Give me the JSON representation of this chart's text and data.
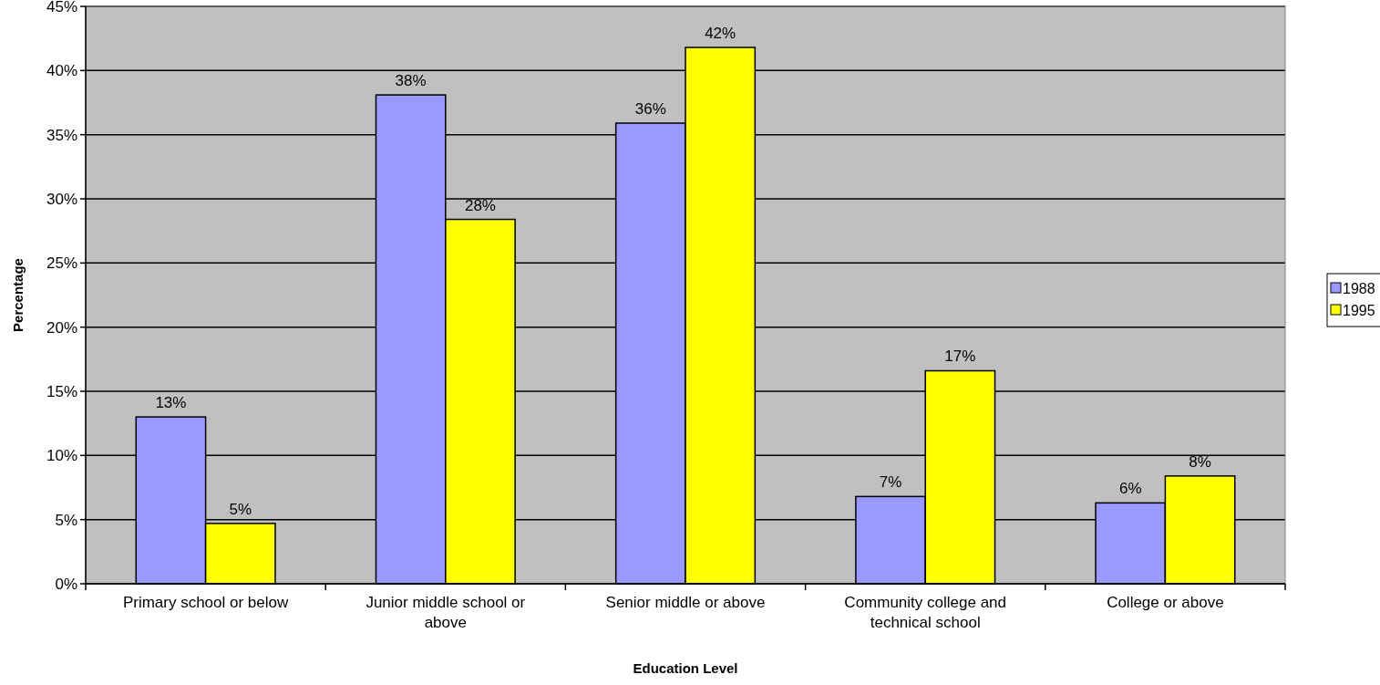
{
  "chart_data": {
    "type": "bar",
    "xlabel": "Education Level",
    "ylabel": "Percentage",
    "categories": [
      "Primary school or below",
      "Junior middle school or above",
      "Senior middle or above",
      "Community college and technical school",
      "College or above"
    ],
    "series": [
      {
        "name": "1988",
        "color": "#9999ff",
        "values": [
          13.0,
          38.1,
          35.9,
          6.8,
          6.3
        ],
        "value_labels": [
          "13%",
          "38%",
          "36%",
          "7%",
          "6%"
        ]
      },
      {
        "name": "1995",
        "color": "#ffff00",
        "values": [
          4.7,
          28.4,
          41.8,
          16.6,
          8.4
        ],
        "value_labels": [
          "5%",
          "28%",
          "42%",
          "17%",
          "8%"
        ]
      }
    ],
    "ylim": [
      0,
      45
    ],
    "yticks": [
      {
        "value": 0,
        "label": "0%"
      },
      {
        "value": 5,
        "label": "5%"
      },
      {
        "value": 10,
        "label": "10%"
      },
      {
        "value": 15,
        "label": "15%"
      },
      {
        "value": 20,
        "label": "20%"
      },
      {
        "value": 25,
        "label": "25%"
      },
      {
        "value": 30,
        "label": "30%"
      },
      {
        "value": 35,
        "label": "35%"
      },
      {
        "value": 40,
        "label": "40%"
      },
      {
        "value": 45,
        "label": "45%"
      }
    ],
    "grid": "y",
    "legend": "right"
  }
}
